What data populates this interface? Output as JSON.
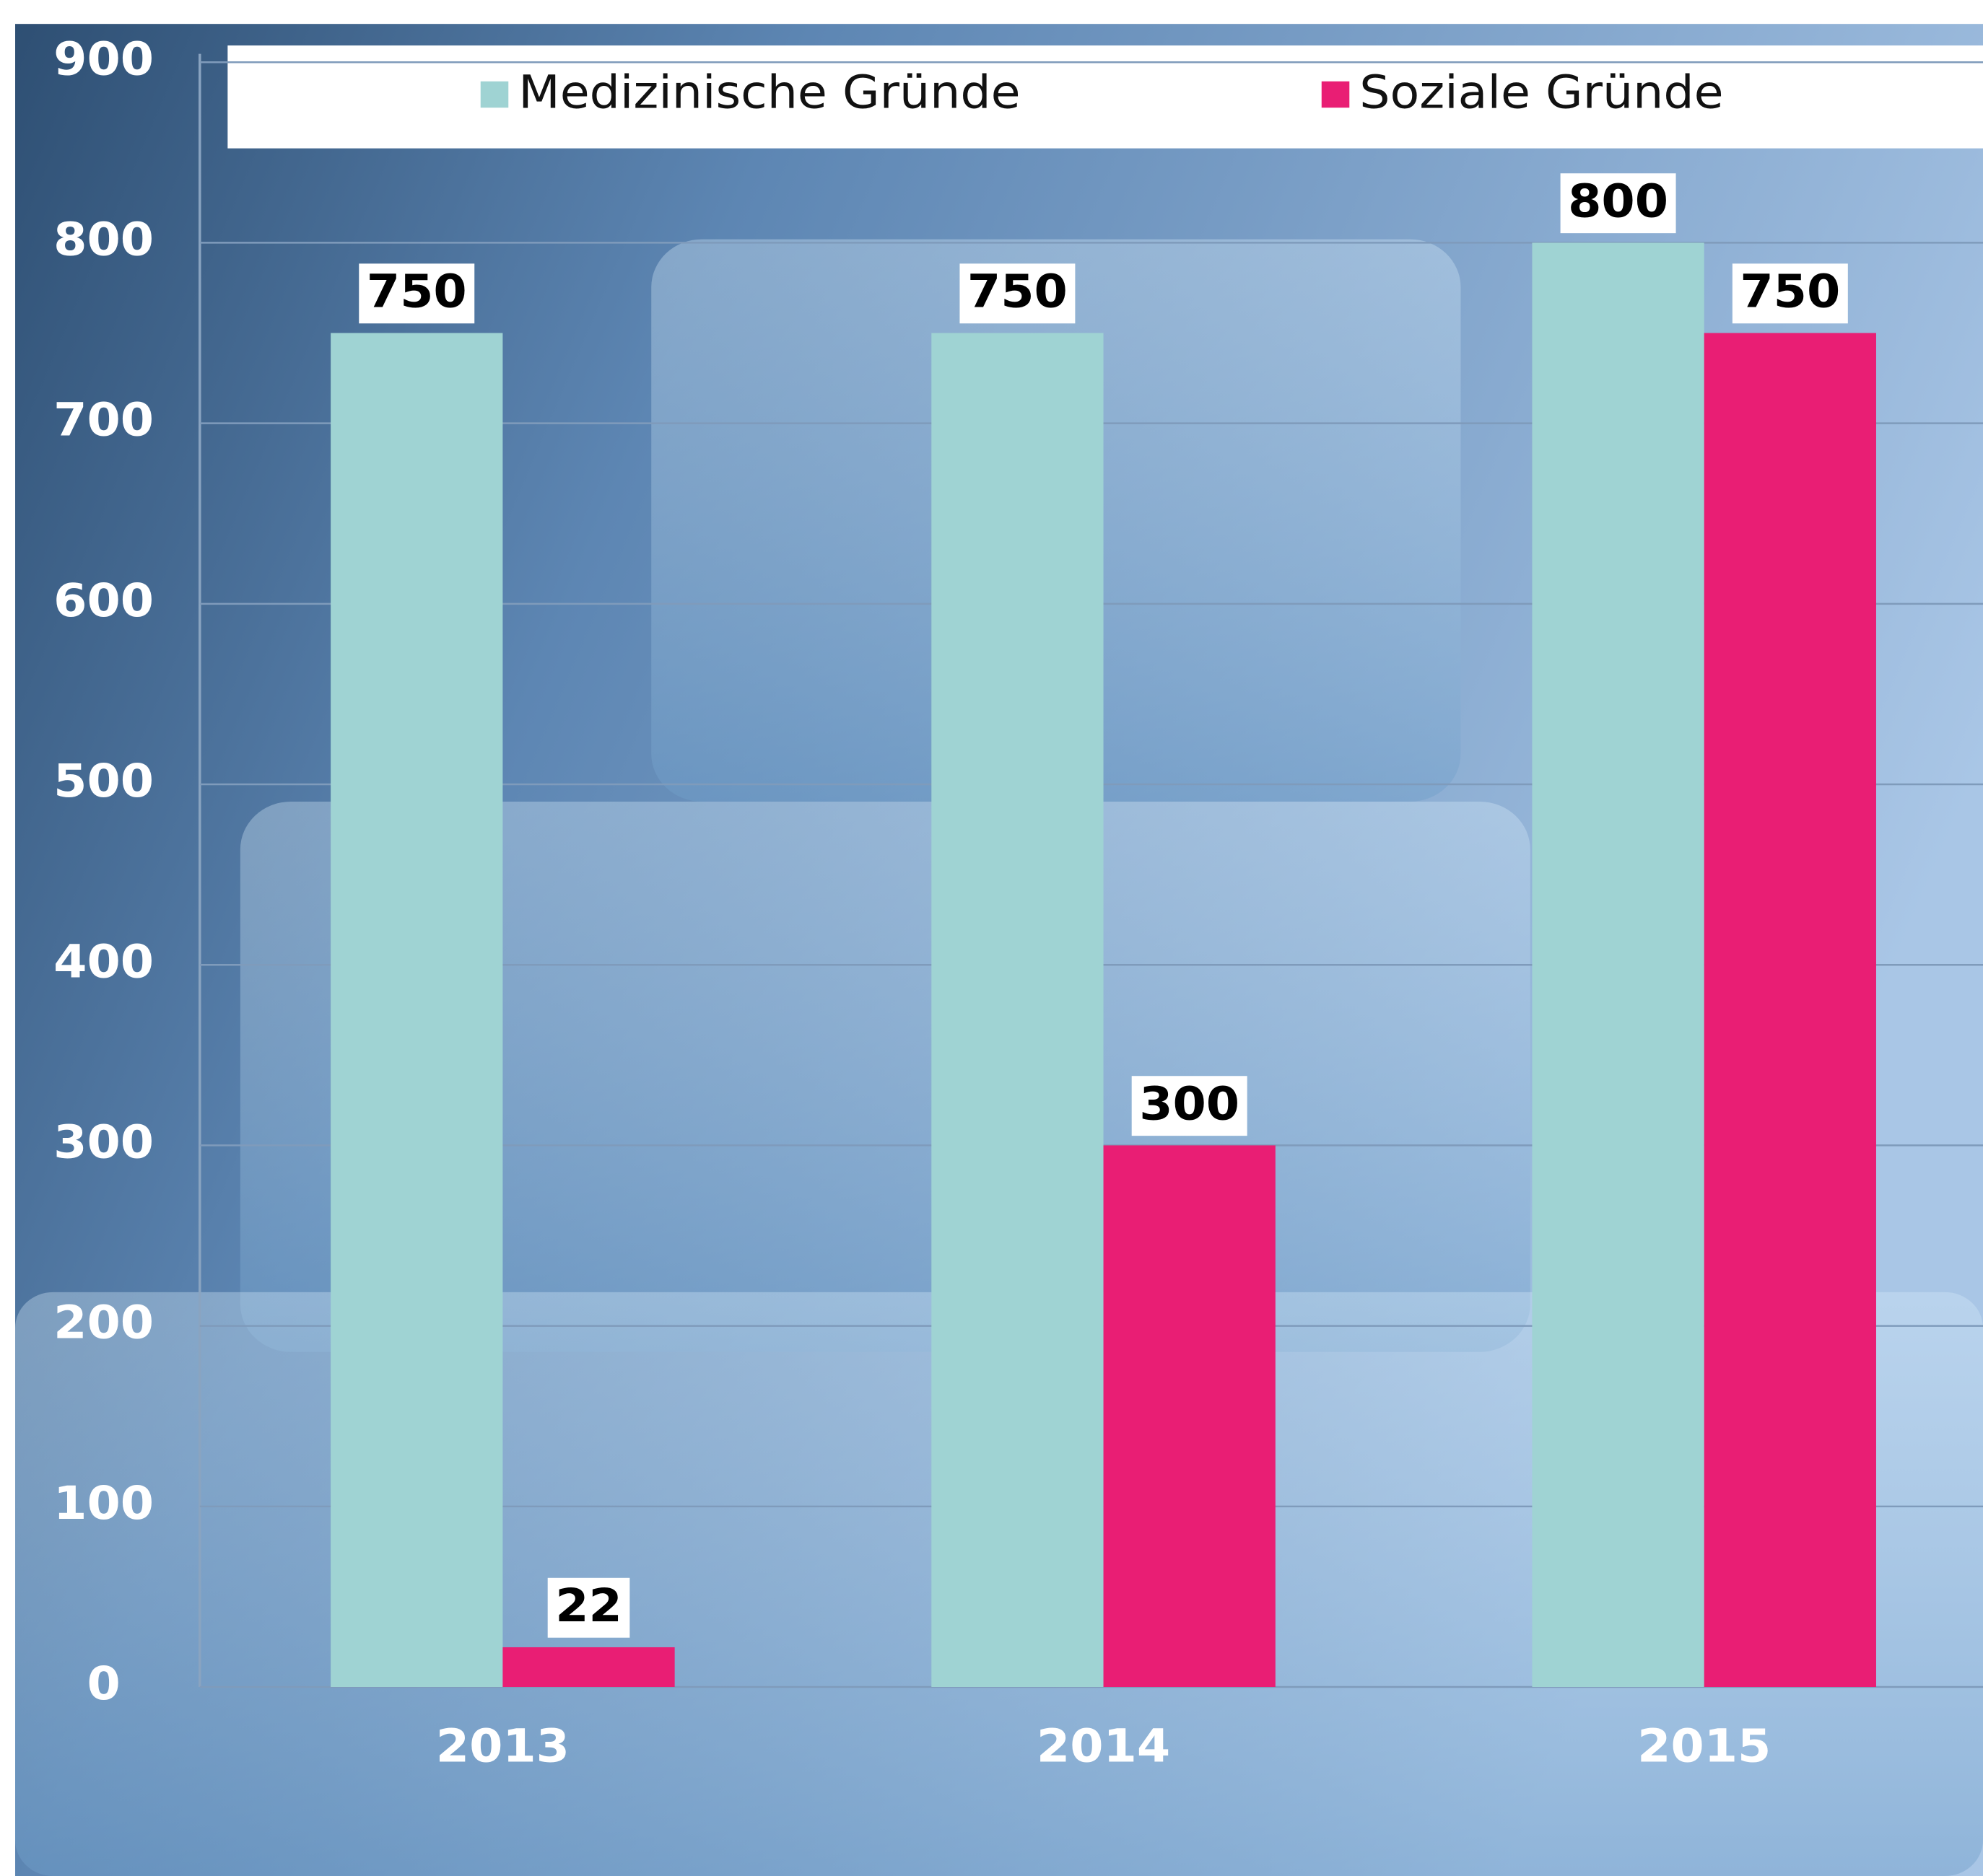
{
  "chart_data": {
    "type": "bar",
    "categories": [
      "2013",
      "2014",
      "2015"
    ],
    "series": [
      {
        "name": "Medizinische Gründe",
        "color": "#9fd3d3",
        "values": [
          750,
          750,
          800
        ]
      },
      {
        "name": "Soziale Gründe",
        "color": "#e91e74",
        "values": [
          22,
          300,
          750
        ]
      }
    ],
    "ylim": [
      0,
      900
    ],
    "yticks": [
      0,
      100,
      200,
      300,
      400,
      500,
      600,
      700,
      800,
      900
    ],
    "grid": true
  }
}
